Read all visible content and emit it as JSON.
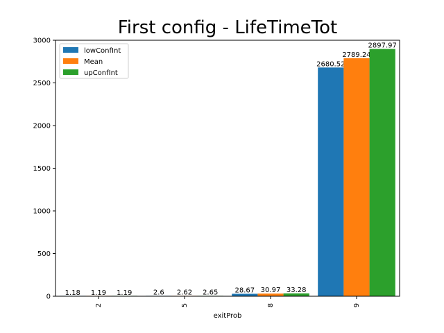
{
  "chart_data": {
    "type": "bar",
    "title": "First config - LifeTimeTot",
    "xlabel": "exitProb",
    "ylabel": "",
    "categories": [
      "2",
      "5",
      "8",
      "9"
    ],
    "series": [
      {
        "name": "lowConfInt",
        "color": "#1f77b4",
        "values": [
          1.18,
          2.6,
          28.67,
          2680.52
        ]
      },
      {
        "name": "Mean",
        "color": "#ff7f0e",
        "values": [
          1.19,
          2.62,
          30.97,
          2789.24
        ]
      },
      {
        "name": "upConfInt",
        "color": "#2ca02c",
        "values": [
          1.19,
          2.65,
          33.28,
          2897.97
        ]
      }
    ],
    "ylim": [
      0,
      3000
    ],
    "yticks": [
      0,
      500,
      1000,
      1500,
      2000,
      2500,
      3000
    ],
    "grid": false,
    "legend_position": "top-left"
  }
}
